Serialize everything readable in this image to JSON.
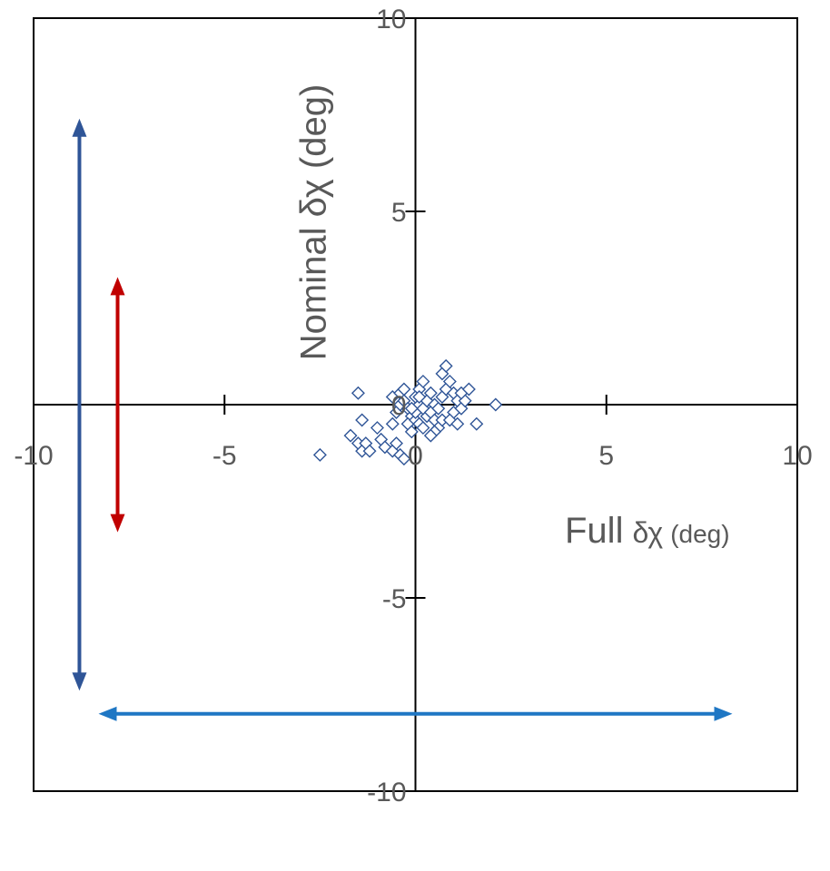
{
  "chart_data": {
    "type": "scatter",
    "xlabel": "Full",
    "xlabel_symbol": "δχ",
    "xlabel_unit": "(deg)",
    "ylabel": "Nominal δχ (deg)",
    "xlim": [
      -10,
      10
    ],
    "ylim": [
      -10,
      10
    ],
    "x_ticks": [
      -10,
      -5,
      0,
      5,
      10
    ],
    "y_ticks": [
      -10,
      -5,
      0,
      5,
      10
    ],
    "grid": false,
    "marker": "open-diamond",
    "marker_color": "#2F5597",
    "points": [
      [
        -2.5,
        -1.3
      ],
      [
        -1.7,
        -0.8
      ],
      [
        -1.5,
        -1.0
      ],
      [
        -1.4,
        -1.2
      ],
      [
        -1.3,
        -1.0
      ],
      [
        -1.2,
        -1.2
      ],
      [
        -1.4,
        -0.4
      ],
      [
        -1.5,
        0.3
      ],
      [
        -1.0,
        -0.6
      ],
      [
        -0.9,
        -0.9
      ],
      [
        -0.8,
        -1.1
      ],
      [
        -0.6,
        -1.2
      ],
      [
        -0.4,
        -1.3
      ],
      [
        -0.3,
        -1.4
      ],
      [
        -0.5,
        -1.0
      ],
      [
        -0.6,
        -0.5
      ],
      [
        -0.5,
        -0.2
      ],
      [
        -0.4,
        0.0
      ],
      [
        -0.6,
        0.2
      ],
      [
        -0.4,
        0.3
      ],
      [
        -0.3,
        0.1
      ],
      [
        -0.2,
        -0.1
      ],
      [
        -0.1,
        -0.3
      ],
      [
        -0.2,
        -0.5
      ],
      [
        -0.1,
        -0.7
      ],
      [
        0.0,
        -0.4
      ],
      [
        0.0,
        -0.2
      ],
      [
        0.1,
        0.0
      ],
      [
        0.0,
        0.2
      ],
      [
        0.1,
        0.4
      ],
      [
        0.2,
        0.6
      ],
      [
        0.1,
        -0.5
      ],
      [
        0.3,
        -0.3
      ],
      [
        0.2,
        -0.1
      ],
      [
        0.3,
        0.1
      ],
      [
        0.4,
        0.3
      ],
      [
        0.5,
        0.0
      ],
      [
        0.4,
        -0.2
      ],
      [
        0.5,
        -0.4
      ],
      [
        0.6,
        -0.6
      ],
      [
        0.7,
        -0.4
      ],
      [
        0.6,
        -0.1
      ],
      [
        0.7,
        0.2
      ],
      [
        0.8,
        0.4
      ],
      [
        0.9,
        0.6
      ],
      [
        0.7,
        0.8
      ],
      [
        0.8,
        1.0
      ],
      [
        1.0,
        0.3
      ],
      [
        1.1,
        0.1
      ],
      [
        1.0,
        -0.2
      ],
      [
        0.9,
        -0.4
      ],
      [
        1.1,
        -0.5
      ],
      [
        1.2,
        -0.1
      ],
      [
        1.3,
        0.1
      ],
      [
        1.2,
        0.3
      ],
      [
        1.4,
        0.4
      ],
      [
        0.5,
        -0.7
      ],
      [
        0.4,
        -0.8
      ],
      [
        0.2,
        -0.6
      ],
      [
        -0.3,
        0.4
      ],
      [
        0.1,
        0.2
      ],
      [
        -0.1,
        -0.1
      ],
      [
        1.6,
        -0.5
      ],
      [
        2.1,
        0.0
      ]
    ],
    "annotations": [
      {
        "kind": "double-arrow",
        "orientation": "vertical",
        "x": -8.8,
        "from": -7.4,
        "to": 7.4,
        "color": "#2F5597"
      },
      {
        "kind": "double-arrow",
        "orientation": "vertical",
        "x": -7.8,
        "from": -3.3,
        "to": 3.3,
        "color": "#C00000"
      },
      {
        "kind": "double-arrow",
        "orientation": "horizontal",
        "y": -8.0,
        "from": -8.3,
        "to": 8.3,
        "color": "#1F77C4"
      }
    ]
  }
}
